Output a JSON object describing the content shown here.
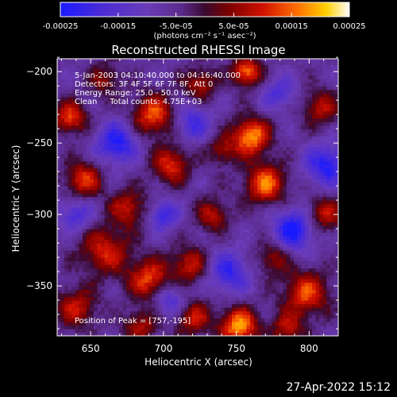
{
  "colorbar": {
    "tick_labels": [
      "-0.00025",
      "-0.00015",
      "-5.0e-05",
      "5.0e-05",
      "0.00015",
      "0.00025"
    ],
    "tick_values": [
      -0.00025,
      -0.00015,
      -5e-05,
      5e-05,
      0.00015,
      0.00025
    ],
    "unit_label": "(photons cm⁻² s⁻¹ asec⁻²)",
    "range": [
      -0.00025,
      0.00025
    ]
  },
  "chart_data": {
    "type": "heatmap",
    "title": "Reconstructed RHESSI Image",
    "xlabel": "Heliocentric X (arcsec)",
    "ylabel": "Heliocentric Y (arcsec)",
    "xlim": [
      627,
      820
    ],
    "ylim": [
      -385,
      -191
    ],
    "x_ticks": [
      "650",
      "700",
      "750",
      "800"
    ],
    "x_tick_values": [
      650,
      700,
      750,
      800
    ],
    "y_ticks": [
      "-200",
      "-250",
      "-300",
      "-350"
    ],
    "y_tick_values": [
      -200,
      -250,
      -300,
      -350
    ],
    "annotations": [
      "5-Jan-2003 04:10:40.000 to 04:16:40.000",
      "Detectors: 3F 4F 5F 6F 7F 8F, Att 0",
      "Energy Range: 25.0 - 50.0 keV",
      "Clean     Total counts: 4.75E+03"
    ],
    "peak_label": "Position of Peak = [757,-195]",
    "peak": [
      757,
      -195
    ],
    "sources": [
      {
        "x": 760,
        "y": -245,
        "s": 9,
        "a": 1.0
      },
      {
        "x": 757,
        "y": -200,
        "s": 7,
        "a": 0.9
      },
      {
        "x": 752,
        "y": -378,
        "s": 9,
        "a": 1.0
      },
      {
        "x": 770,
        "y": -278,
        "s": 10,
        "a": 0.85
      },
      {
        "x": 693,
        "y": -230,
        "s": 10,
        "a": 0.8
      },
      {
        "x": 705,
        "y": -265,
        "s": 9,
        "a": 0.7
      },
      {
        "x": 636,
        "y": -232,
        "s": 8,
        "a": 0.75
      },
      {
        "x": 645,
        "y": -275,
        "s": 9,
        "a": 0.7
      },
      {
        "x": 660,
        "y": -325,
        "s": 12,
        "a": 0.65
      },
      {
        "x": 690,
        "y": -345,
        "s": 10,
        "a": 0.75
      },
      {
        "x": 676,
        "y": -295,
        "s": 9,
        "a": 0.6
      },
      {
        "x": 718,
        "y": -335,
        "s": 9,
        "a": 0.6
      },
      {
        "x": 734,
        "y": -300,
        "s": 8,
        "a": 0.55
      },
      {
        "x": 798,
        "y": -355,
        "s": 11,
        "a": 0.75
      },
      {
        "x": 810,
        "y": -300,
        "s": 9,
        "a": 0.6
      },
      {
        "x": 725,
        "y": -208,
        "s": 8,
        "a": 0.55
      },
      {
        "x": 640,
        "y": -365,
        "s": 10,
        "a": 0.6
      },
      {
        "x": 775,
        "y": -330,
        "s": 8,
        "a": 0.5
      },
      {
        "x": 808,
        "y": -225,
        "s": 9,
        "a": 0.55
      },
      {
        "x": 720,
        "y": -372,
        "s": 9,
        "a": 0.6
      },
      {
        "x": 660,
        "y": -205,
        "s": 8,
        "a": 0.45
      },
      {
        "x": 740,
        "y": -255,
        "s": 7,
        "a": 0.5
      },
      {
        "x": 684,
        "y": -378,
        "s": 8,
        "a": 0.55
      },
      {
        "x": 785,
        "y": -380,
        "s": 8,
        "a": 0.55
      },
      {
        "x": 700,
        "y": -300,
        "s": 7,
        "a": -0.6
      },
      {
        "x": 790,
        "y": -310,
        "s": 10,
        "a": -0.8
      },
      {
        "x": 812,
        "y": -265,
        "s": 10,
        "a": -0.7
      },
      {
        "x": 745,
        "y": -340,
        "s": 10,
        "a": -0.6
      },
      {
        "x": 668,
        "y": -250,
        "s": 10,
        "a": -0.7
      },
      {
        "x": 640,
        "y": -300,
        "s": 8,
        "a": -0.5
      },
      {
        "x": 720,
        "y": -235,
        "s": 9,
        "a": -0.5
      },
      {
        "x": 780,
        "y": -215,
        "s": 8,
        "a": -0.45
      },
      {
        "x": 705,
        "y": -360,
        "s": 8,
        "a": -0.5
      }
    ]
  },
  "footer": {
    "date": "27-Apr-2022 15:12"
  }
}
